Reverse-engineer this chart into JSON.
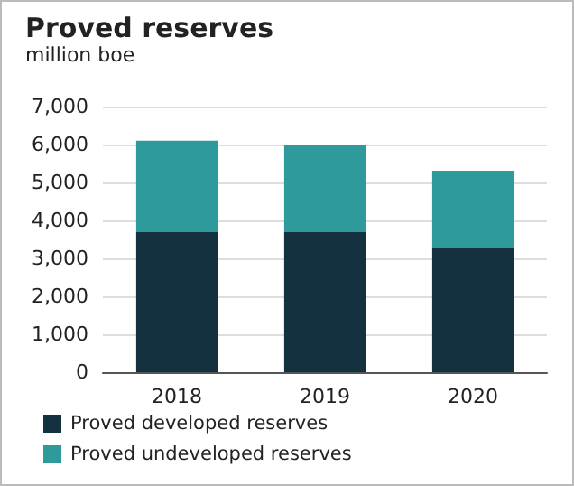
{
  "chart_data": {
    "type": "bar",
    "title": "Proved reserves",
    "subtitle": "million boe",
    "categories": [
      "2018",
      "2019",
      "2020"
    ],
    "stacked": true,
    "series": [
      {
        "name": "Proved developed reserves",
        "color": "#14313f",
        "values": [
          3690,
          3690,
          3270
        ]
      },
      {
        "name": "Proved undeveloped reserves",
        "color": "#2e9a9b",
        "values": [
          2410,
          2300,
          2040
        ]
      }
    ],
    "ylim": [
      0,
      7000
    ],
    "yticks": [
      0,
      {
        "value": 1000,
        "label": "1,000"
      },
      {
        "value": 2000,
        "label": "2,000"
      },
      {
        "value": 3000,
        "label": "3,000"
      },
      {
        "value": 4000,
        "label": "4,000"
      },
      {
        "value": 5000,
        "label": "5,000"
      },
      {
        "value": 6000,
        "label": "6,000"
      },
      {
        "value": 7000,
        "label": "7,000"
      }
    ],
    "grid": "y",
    "legend": "bottom left"
  }
}
